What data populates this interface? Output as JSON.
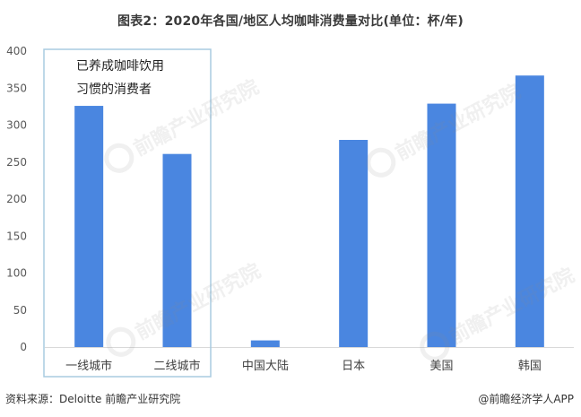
{
  "chart_data": {
    "type": "bar",
    "title": "图表2：2020年各国/地区人均咖啡消费量对比(单位：杯/年)",
    "categories": [
      "一线城市",
      "二线城市",
      "中国大陆",
      "日本",
      "美国",
      "韩国"
    ],
    "values": [
      326,
      261,
      9,
      280,
      329,
      367
    ],
    "ylim": [
      0,
      400
    ],
    "yticks": [
      0,
      50,
      100,
      150,
      200,
      250,
      300,
      350,
      400
    ],
    "grid": false,
    "legend": "none",
    "bar_color": "#4a86e0",
    "annotation": {
      "lines": [
        "已养成咖啡饮用",
        "习惯的消费者"
      ],
      "box_color": "#9ec3d6",
      "groups": [
        "一线城市",
        "二线城市"
      ]
    }
  },
  "footer": {
    "source": "资料来源：Deloitte 前瞻产业研究院",
    "credit": "@前瞻经济学人APP"
  },
  "watermark": {
    "text": "前瞻产业研究院"
  }
}
